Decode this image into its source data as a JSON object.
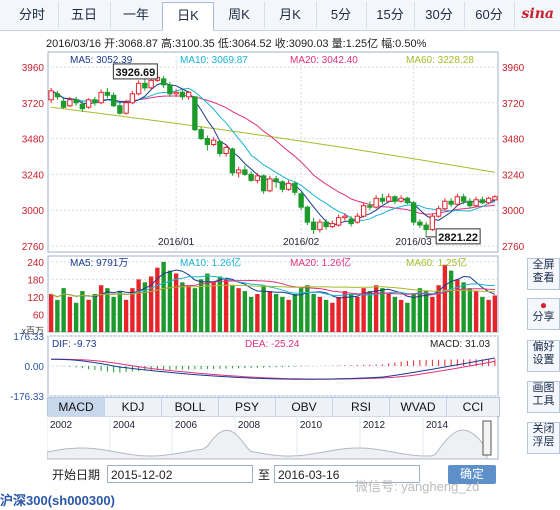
{
  "tabs": [
    {
      "label": "分时",
      "active": false
    },
    {
      "label": "五日",
      "active": false
    },
    {
      "label": "一年",
      "active": false
    },
    {
      "label": "日K",
      "active": true
    },
    {
      "label": "周K",
      "active": false
    },
    {
      "label": "月K",
      "active": false
    },
    {
      "label": "5分",
      "active": false
    },
    {
      "label": "15分",
      "active": false
    },
    {
      "label": "30分",
      "active": false
    },
    {
      "label": "60分",
      "active": false
    }
  ],
  "logo": "sina",
  "info_line": "2016/03/16 开:3068.87 高:3100.35 低:3064.52 收:3090.03 量:1.25亿 幅:0.50%",
  "price_panel": {
    "ma_legend": [
      {
        "text": "MA5: 3052.39",
        "color": "#1a3a8f"
      },
      {
        "text": "MA10: 3069.87",
        "color": "#19b4d6"
      },
      {
        "text": "MA20: 3042.40",
        "color": "#e0307f"
      },
      {
        "text": "MA60: 3228.28",
        "color": "#a5bd2a"
      }
    ],
    "y_ticks": [
      "3960",
      "3720",
      "3480",
      "3240",
      "3000",
      "2760"
    ],
    "x_ticks": [
      "2016/01",
      "2016/02",
      "2016/03"
    ],
    "high_label": "3926.69",
    "low_label": "2821.22"
  },
  "volume_panel": {
    "ma_legend": [
      {
        "text": "MA5: 9791万",
        "color": "#1a3a8f"
      },
      {
        "text": "MA10: 1.26亿",
        "color": "#19b4d6"
      },
      {
        "text": "MA20: 1.26亿",
        "color": "#e0307f"
      },
      {
        "text": "MA60: 1.25亿",
        "color": "#a5bd2a"
      }
    ],
    "y_ticks": [
      "240",
      "180",
      "120",
      "60"
    ],
    "unit": "x百万"
  },
  "macd_panel": {
    "legend": [
      {
        "text": "DIF: -9.73",
        "color": "#1a3a8f"
      },
      {
        "text": "DEA: -25.24",
        "color": "#e0307f"
      },
      {
        "text": "MACD: 31.03",
        "color": "#222222"
      }
    ],
    "y_ticks": [
      "176.33",
      "0.00",
      "-176.33"
    ]
  },
  "indicator_tabs": [
    {
      "label": "MACD",
      "active": true
    },
    {
      "label": "KDJ",
      "active": false
    },
    {
      "label": "BOLL",
      "active": false
    },
    {
      "label": "PSY",
      "active": false
    },
    {
      "label": "OBV",
      "active": false
    },
    {
      "label": "RSI",
      "active": false
    },
    {
      "label": "WVAD",
      "active": false
    },
    {
      "label": "CCI",
      "active": false
    }
  ],
  "timeline_years": [
    "2002",
    "2004",
    "2006",
    "2008",
    "2010",
    "2012",
    "2014"
  ],
  "side_buttons": [
    {
      "label": "全屏查看",
      "icon": "fullscreen-icon"
    },
    {
      "label": "分享",
      "icon": "weibo-icon"
    },
    {
      "label": "偏好设置",
      "icon": "settings-icon"
    },
    {
      "label": "画图工具",
      "icon": "draw-icon"
    },
    {
      "label": "关闭浮层",
      "icon": "close-icon"
    }
  ],
  "date_range": {
    "start_label": "开始日期",
    "start_value": "2015-12-02",
    "sep": "至",
    "end_value": "2016-03-16",
    "confirm": "确定"
  },
  "footer_title": "沪深300(sh000300)",
  "watermark": "微信号: yangheng_zd",
  "chart_data": {
    "type": "candlestick",
    "y_range": [
      2760,
      4020
    ],
    "series_colors": {
      "up": "#e8242b",
      "down": "#1c9a2c"
    },
    "candles": [
      {
        "o": 3740,
        "c": 3800,
        "h": 3820,
        "l": 3720
      },
      {
        "o": 3780,
        "c": 3760,
        "h": 3800,
        "l": 3740
      },
      {
        "o": 3730,
        "c": 3690,
        "h": 3760,
        "l": 3680
      },
      {
        "o": 3700,
        "c": 3740,
        "h": 3760,
        "l": 3690
      },
      {
        "o": 3740,
        "c": 3720,
        "h": 3760,
        "l": 3700
      },
      {
        "o": 3710,
        "c": 3680,
        "h": 3730,
        "l": 3660
      },
      {
        "o": 3690,
        "c": 3740,
        "h": 3750,
        "l": 3680
      },
      {
        "o": 3740,
        "c": 3720,
        "h": 3760,
        "l": 3700
      },
      {
        "o": 3720,
        "c": 3790,
        "h": 3810,
        "l": 3710
      },
      {
        "o": 3790,
        "c": 3770,
        "h": 3820,
        "l": 3750
      },
      {
        "o": 3770,
        "c": 3700,
        "h": 3790,
        "l": 3690
      },
      {
        "o": 3700,
        "c": 3650,
        "h": 3720,
        "l": 3640
      },
      {
        "o": 3650,
        "c": 3720,
        "h": 3740,
        "l": 3640
      },
      {
        "o": 3720,
        "c": 3780,
        "h": 3800,
        "l": 3710
      },
      {
        "o": 3780,
        "c": 3850,
        "h": 3870,
        "l": 3770
      },
      {
        "o": 3850,
        "c": 3820,
        "h": 3880,
        "l": 3800
      },
      {
        "o": 3820,
        "c": 3870,
        "h": 3900,
        "l": 3810
      },
      {
        "o": 3870,
        "c": 3890,
        "h": 3926.69,
        "l": 3860
      },
      {
        "o": 3880,
        "c": 3840,
        "h": 3900,
        "l": 3820
      },
      {
        "o": 3840,
        "c": 3780,
        "h": 3860,
        "l": 3760
      },
      {
        "o": 3780,
        "c": 3790,
        "h": 3810,
        "l": 3760
      },
      {
        "o": 3790,
        "c": 3760,
        "h": 3810,
        "l": 3740
      },
      {
        "o": 3760,
        "c": 3790,
        "h": 3800,
        "l": 3740
      },
      {
        "o": 3760,
        "c": 3540,
        "h": 3760,
        "l": 3530
      },
      {
        "o": 3540,
        "c": 3480,
        "h": 3560,
        "l": 3470
      },
      {
        "o": 3480,
        "c": 3440,
        "h": 3500,
        "l": 3400
      },
      {
        "o": 3440,
        "c": 3470,
        "h": 3490,
        "l": 3430
      },
      {
        "o": 3460,
        "c": 3380,
        "h": 3470,
        "l": 3360
      },
      {
        "o": 3380,
        "c": 3420,
        "h": 3440,
        "l": 3360
      },
      {
        "o": 3410,
        "c": 3250,
        "h": 3420,
        "l": 3230
      },
      {
        "o": 3250,
        "c": 3270,
        "h": 3290,
        "l": 3220
      },
      {
        "o": 3270,
        "c": 3240,
        "h": 3300,
        "l": 3230
      },
      {
        "o": 3240,
        "c": 3200,
        "h": 3260,
        "l": 3190
      },
      {
        "o": 3200,
        "c": 3230,
        "h": 3250,
        "l": 3180
      },
      {
        "o": 3230,
        "c": 3130,
        "h": 3240,
        "l": 3110
      },
      {
        "o": 3130,
        "c": 3210,
        "h": 3230,
        "l": 3120
      },
      {
        "o": 3210,
        "c": 3190,
        "h": 3230,
        "l": 3150
      },
      {
        "o": 3190,
        "c": 3140,
        "h": 3200,
        "l": 3120
      },
      {
        "o": 3140,
        "c": 3180,
        "h": 3200,
        "l": 3130
      },
      {
        "o": 3180,
        "c": 3120,
        "h": 3190,
        "l": 3100
      },
      {
        "o": 3110,
        "c": 3020,
        "h": 3120,
        "l": 3000
      },
      {
        "o": 3020,
        "c": 2920,
        "h": 3030,
        "l": 2900
      },
      {
        "o": 2920,
        "c": 2870,
        "h": 2950,
        "l": 2840
      },
      {
        "o": 2870,
        "c": 2920,
        "h": 2940,
        "l": 2850
      },
      {
        "o": 2920,
        "c": 2890,
        "h": 2940,
        "l": 2870
      },
      {
        "o": 2890,
        "c": 2910,
        "h": 2930,
        "l": 2880
      },
      {
        "o": 2900,
        "c": 2950,
        "h": 2970,
        "l": 2890
      },
      {
        "o": 2950,
        "c": 2960,
        "h": 2980,
        "l": 2930
      },
      {
        "o": 2940,
        "c": 2910,
        "h": 2960,
        "l": 2890
      },
      {
        "o": 2920,
        "c": 2960,
        "h": 2980,
        "l": 2910
      },
      {
        "o": 2960,
        "c": 3030,
        "h": 3050,
        "l": 2950
      },
      {
        "o": 3030,
        "c": 3020,
        "h": 3060,
        "l": 3000
      },
      {
        "o": 3020,
        "c": 3080,
        "h": 3100,
        "l": 3010
      },
      {
        "o": 3080,
        "c": 3060,
        "h": 3110,
        "l": 3040
      },
      {
        "o": 3060,
        "c": 3090,
        "h": 3110,
        "l": 3050
      },
      {
        "o": 3090,
        "c": 3060,
        "h": 3100,
        "l": 3040
      },
      {
        "o": 3060,
        "c": 3080,
        "h": 3100,
        "l": 3050
      },
      {
        "o": 3080,
        "c": 3050,
        "h": 3090,
        "l": 3040
      },
      {
        "o": 3050,
        "c": 2920,
        "h": 3060,
        "l": 2900
      },
      {
        "o": 2920,
        "c": 2900,
        "h": 2940,
        "l": 2880
      },
      {
        "o": 2900,
        "c": 2870,
        "h": 2920,
        "l": 2821.22
      },
      {
        "o": 2870,
        "c": 2960,
        "h": 2980,
        "l": 2860
      },
      {
        "o": 2960,
        "c": 3010,
        "h": 3030,
        "l": 2950
      },
      {
        "o": 3010,
        "c": 3060,
        "h": 3080,
        "l": 3000
      },
      {
        "o": 3060,
        "c": 3040,
        "h": 3080,
        "l": 3020
      },
      {
        "o": 3040,
        "c": 3090,
        "h": 3110,
        "l": 3030
      },
      {
        "o": 3090,
        "c": 3060,
        "h": 3110,
        "l": 3040
      },
      {
        "o": 3060,
        "c": 3030,
        "h": 3080,
        "l": 3010
      },
      {
        "o": 3030,
        "c": 3070,
        "h": 3090,
        "l": 3020
      },
      {
        "o": 3070,
        "c": 3050,
        "h": 3090,
        "l": 3040
      },
      {
        "o": 3050,
        "c": 3080,
        "h": 3090,
        "l": 3040
      },
      {
        "o": 3068.87,
        "c": 3090.03,
        "h": 3100.35,
        "l": 3064.52
      }
    ],
    "volumes": [
      130,
      110,
      150,
      120,
      100,
      140,
      110,
      130,
      160,
      150,
      120,
      140,
      110,
      150,
      180,
      170,
      190,
      220,
      240,
      210,
      200,
      170,
      160,
      150,
      180,
      200,
      170,
      190,
      180,
      160,
      150,
      140,
      120,
      130,
      160,
      140,
      130,
      120,
      110,
      130,
      150,
      160,
      130,
      120,
      110,
      100,
      120,
      140,
      130,
      120,
      150,
      140,
      160,
      150,
      130,
      120,
      110,
      100,
      130,
      150,
      140,
      120,
      160,
      230,
      210,
      180,
      170,
      150,
      140,
      120,
      110,
      125
    ],
    "ma60_start": 3690,
    "ma60_end": 3228.28,
    "macd_range": [
      -176.33,
      176.33
    ]
  }
}
